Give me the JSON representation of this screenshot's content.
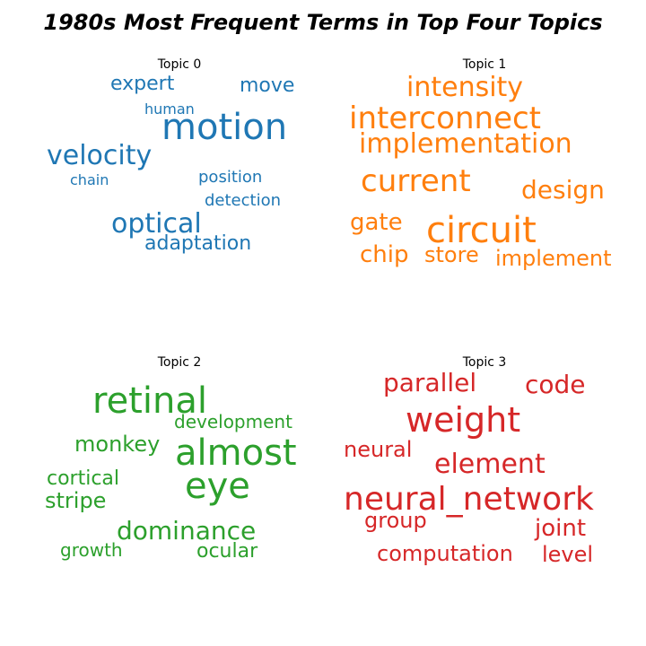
{
  "chart_data": {
    "type": "wordcloud",
    "title": "1980s Most Frequent Terms in Top Four Topics",
    "panels": [
      {
        "name": "Topic 0",
        "color": "#1f77b4",
        "words": [
          "motion",
          "velocity",
          "optical",
          "move",
          "expert",
          "adaptation",
          "human",
          "position",
          "detection",
          "chain"
        ]
      },
      {
        "name": "Topic 1",
        "color": "#ff7f0e",
        "words": [
          "circuit",
          "interconnect",
          "current",
          "implementation",
          "intensity",
          "design",
          "gate",
          "chip",
          "store",
          "implement"
        ]
      },
      {
        "name": "Topic 2",
        "color": "#2ca02c",
        "words": [
          "retinal",
          "almost",
          "eye",
          "dominance",
          "monkey",
          "stripe",
          "cortical",
          "development",
          "ocular",
          "growth"
        ]
      },
      {
        "name": "Topic 3",
        "color": "#d62728",
        "words": [
          "neural_network",
          "weight",
          "element",
          "parallel",
          "code",
          "neural",
          "group",
          "joint",
          "computation",
          "level"
        ]
      }
    ]
  }
}
